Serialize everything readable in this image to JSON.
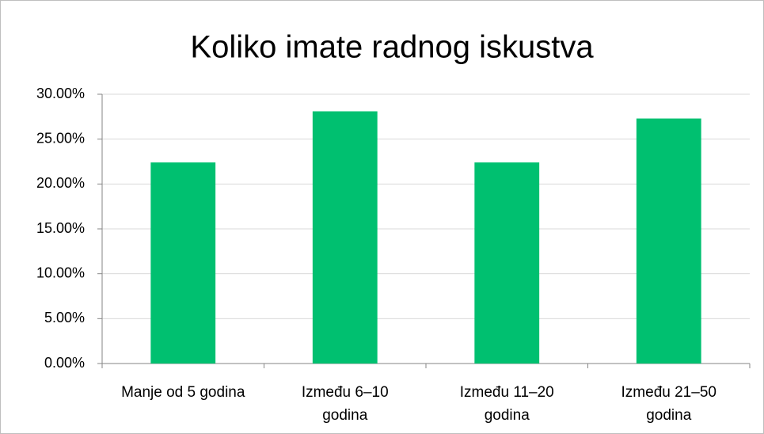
{
  "chart_data": {
    "type": "bar",
    "title": "Koliko imate radnog iskustva",
    "categories": [
      "Manje od 5 godina",
      "Između 6–10 godina",
      "Između 11–20 godina",
      "Između 21–50 godina"
    ],
    "values": [
      22.4,
      28.1,
      22.4,
      27.3
    ],
    "color": "#00c070",
    "ylim": [
      0,
      30
    ],
    "yticks": [
      {
        "value": 0,
        "label": "0.00%"
      },
      {
        "value": 5,
        "label": "5.00%"
      },
      {
        "value": 10,
        "label": "10.00%"
      },
      {
        "value": 15,
        "label": "15.00%"
      },
      {
        "value": 20,
        "label": "20.00%"
      },
      {
        "value": 25,
        "label": "25.00%"
      },
      {
        "value": 30,
        "label": "30.00%"
      }
    ],
    "grid": true
  }
}
